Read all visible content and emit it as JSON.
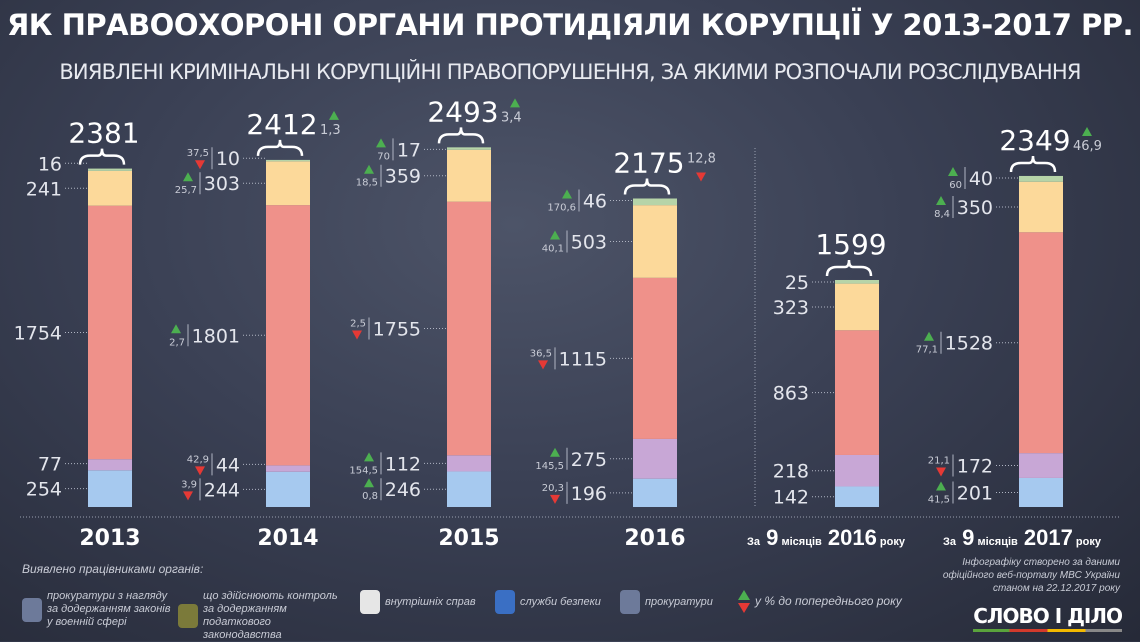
{
  "title": "ЯК ПРАВООХОРОНІ ОРГАНИ ПРОТИДІЯЛИ КОРУПЦІЇ У 2013-2017 РР.",
  "subtitle": "ВИЯВЛЕНІ КРИМІНАЛЬНІ КОРУПЦІЙНІ ПРАВОПОРУШЕННЯ, ЗА ЯКИМИ РОЗПОЧАЛИ РОЗСЛІДУВАННЯ",
  "colors": {
    "blue": "#a6c9ef",
    "purple": "#c8a7d6",
    "red": "#ef918a",
    "yellow": "#fcd99a",
    "green": "#b6d4a8",
    "up": "#4caf50",
    "down": "#e53935"
  },
  "chart_data": {
    "type": "bar",
    "stacked": true,
    "segment_order_bottom_to_top": [
      "blue",
      "purple",
      "red",
      "yellow",
      "green"
    ],
    "categories": [
      {
        "label": "2013",
        "prefix": "",
        "months": "",
        "suffix": ""
      },
      {
        "label": "2014",
        "prefix": "",
        "months": "",
        "suffix": ""
      },
      {
        "label": "2015",
        "prefix": "",
        "months": "",
        "suffix": ""
      },
      {
        "label": "2016",
        "prefix": "",
        "months": "",
        "suffix": ""
      },
      {
        "label": "2016",
        "prefix": "За",
        "months": "9",
        "mid": "місяців",
        "suffix": "року"
      },
      {
        "label": "2017",
        "prefix": "За",
        "months": "9",
        "mid": "місяців",
        "suffix": "року"
      }
    ],
    "bars": [
      {
        "total": "2381",
        "total_change": null,
        "segments": [
          {
            "v": 254,
            "c": null
          },
          {
            "v": 77,
            "c": null
          },
          {
            "v": 1754,
            "c": null
          },
          {
            "v": 241,
            "c": null
          },
          {
            "v": 16,
            "c": null
          }
        ]
      },
      {
        "total": "2412",
        "total_change": {
          "dir": "up",
          "v": "1,3"
        },
        "segments": [
          {
            "v": 244,
            "c": {
              "dir": "down",
              "v": "3,9"
            }
          },
          {
            "v": 44,
            "c": {
              "dir": "down",
              "v": "42,9"
            }
          },
          {
            "v": 1801,
            "c": {
              "dir": "up",
              "v": "2,7"
            }
          },
          {
            "v": 303,
            "c": {
              "dir": "up",
              "v": "25,7"
            }
          },
          {
            "v": 10,
            "c": {
              "dir": "down",
              "v": "37,5"
            }
          }
        ]
      },
      {
        "total": "2493",
        "total_change": {
          "dir": "up",
          "v": "3,4"
        },
        "segments": [
          {
            "v": 246,
            "c": {
              "dir": "up",
              "v": "0,8"
            }
          },
          {
            "v": 112,
            "c": {
              "dir": "up",
              "v": "154,5"
            }
          },
          {
            "v": 1755,
            "c": {
              "dir": "down",
              "v": "2,5"
            }
          },
          {
            "v": 359,
            "c": {
              "dir": "up",
              "v": "18,5"
            }
          },
          {
            "v": 17,
            "c": {
              "dir": "up",
              "v": "70"
            }
          }
        ]
      },
      {
        "total": "2175",
        "total_change": {
          "dir": "down",
          "v": "12,8"
        },
        "segments": [
          {
            "v": 196,
            "c": {
              "dir": "down",
              "v": "20,3"
            }
          },
          {
            "v": 275,
            "c": {
              "dir": "up",
              "v": "145,5"
            }
          },
          {
            "v": 1115,
            "c": {
              "dir": "down",
              "v": "36,5"
            }
          },
          {
            "v": 503,
            "c": {
              "dir": "up",
              "v": "40,1"
            }
          },
          {
            "v": 46,
            "c": {
              "dir": "up",
              "v": "170,6"
            }
          }
        ]
      },
      {
        "total": "1599",
        "total_change": null,
        "segments": [
          {
            "v": 142,
            "c": null
          },
          {
            "v": 218,
            "c": null
          },
          {
            "v": 863,
            "c": null
          },
          {
            "v": 323,
            "c": null
          },
          {
            "v": 25,
            "c": null
          }
        ]
      },
      {
        "total": "2349",
        "total_change": {
          "dir": "up",
          "v": "46,9"
        },
        "segments": [
          {
            "v": 201,
            "c": {
              "dir": "up",
              "v": "41,5"
            }
          },
          {
            "v": 172,
            "c": {
              "dir": "down",
              "v": "21,1"
            }
          },
          {
            "v": 1528,
            "c": {
              "dir": "up",
              "v": "77,1"
            }
          },
          {
            "v": 350,
            "c": {
              "dir": "up",
              "v": "8,4"
            }
          },
          {
            "v": 40,
            "c": {
              "dir": "up",
              "v": "60"
            }
          }
        ]
      }
    ]
  },
  "legend": {
    "heading": "Виявлено працівниками органів:",
    "items": [
      {
        "icon": "military-prosecutor-emblem-icon",
        "text": "прокуратури з нагляду за додержанням законів у военній сфері"
      },
      {
        "icon": "tax-police-emblem-icon",
        "text": "що здійснюють контроль за додержанням податкового законодавства"
      },
      {
        "icon": "police-emblem-icon",
        "text": "внутрішніх справ"
      },
      {
        "icon": "sbu-emblem-icon",
        "text": "служби безпеки"
      },
      {
        "icon": "prosecutor-emblem-icon",
        "text": "прокуратури"
      },
      {
        "icon": "up-down-triangles-icon",
        "text": "у % до попереднього року"
      }
    ]
  },
  "source": "Інфографіку створено за даними офіційного веб-порталу МВС України станом на 22.12.2017 року",
  "logo": "СЛОВО І ДІЛО"
}
